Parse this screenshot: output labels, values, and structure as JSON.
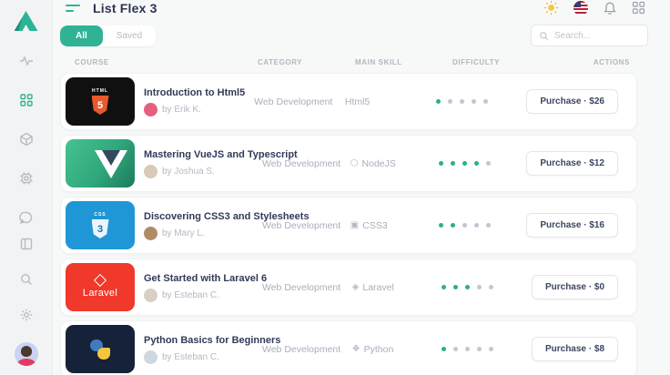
{
  "app": {
    "title": "List Flex 3"
  },
  "sidebar": {
    "items": [
      "activity",
      "dashboard",
      "packages",
      "cpu",
      "messages",
      "layout",
      "search",
      "settings",
      "profile"
    ],
    "active_item": "dashboard"
  },
  "topbar": {
    "icons": [
      "theme-sun",
      "language-flag-us",
      "notifications-bell",
      "apps-grid"
    ]
  },
  "tabs": {
    "all": "All",
    "saved": "Saved",
    "active": "All"
  },
  "search": {
    "placeholder": "Search..."
  },
  "table": {
    "columns": [
      "Course",
      "Category",
      "Main Skill",
      "Difficulty",
      "Actions"
    ],
    "rows": [
      {
        "title": "Introduction to Html5",
        "author": "by Erik K.",
        "category": "Web Development",
        "skill": "Html5",
        "skill_icon": "",
        "difficulty": 1,
        "difficulty_max": 5,
        "action": "Purchase · $26",
        "thumb": "html5",
        "thumb_top": "HTML",
        "thumb_badge": "5",
        "thumb_label": "",
        "avatar_color": "#e85f7e"
      },
      {
        "title": "Mastering VueJS and Typescript",
        "author": "by Joshua S.",
        "category": "Web Development",
        "skill": "NodeJS",
        "skill_icon": "⬡",
        "difficulty": 4,
        "difficulty_max": 5,
        "action": "Purchase · $12",
        "thumb": "vue",
        "thumb_top": "",
        "thumb_badge": "",
        "thumb_label": "",
        "avatar_color": "#d8c9b8"
      },
      {
        "title": "Discovering CSS3 and Stylesheets",
        "author": "by Mary L.",
        "category": "Web Development",
        "skill": "CSS3",
        "skill_icon": "▣",
        "difficulty": 2,
        "difficulty_max": 5,
        "action": "Purchase · $16",
        "thumb": "css3",
        "thumb_top": "CSS",
        "thumb_badge": "3",
        "thumb_label": "",
        "avatar_color": "#b08b68"
      },
      {
        "title": "Get Started with Laravel 6",
        "author": "by Esteban C.",
        "category": "Web Development",
        "skill": "Laravel",
        "skill_icon": "◈",
        "difficulty": 3,
        "difficulty_max": 5,
        "action": "Purchase · $0",
        "thumb": "laravel",
        "thumb_top": "",
        "thumb_badge": "",
        "thumb_label": "Laravel",
        "avatar_color": "#d9cfc4"
      },
      {
        "title": "Python Basics for Beginners",
        "author": "by Esteban C.",
        "category": "Web Development",
        "skill": "Python",
        "skill_icon": "❖",
        "difficulty": 1,
        "difficulty_max": 5,
        "action": "Purchase · $8",
        "thumb": "python",
        "thumb_top": "",
        "thumb_badge": "",
        "thumb_label": "",
        "avatar_color": "#cfd8de"
      }
    ]
  },
  "colors": {
    "accent": "#2fb394",
    "dot_active": "#2aaf8c",
    "dot_inactive": "#c3c6d1",
    "title_text": "#2b3552"
  }
}
